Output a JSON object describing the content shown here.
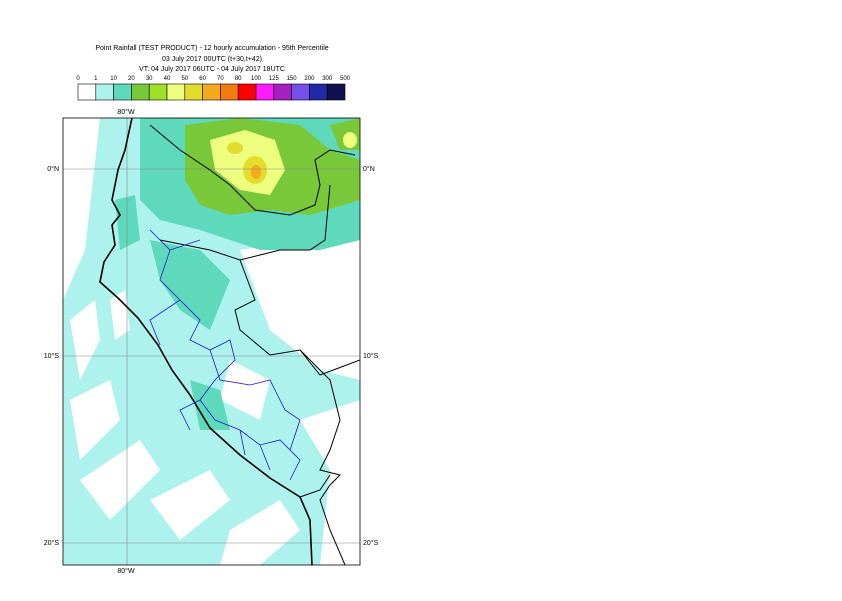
{
  "header": {
    "title": "Point Rainfall (TEST PRODUCT) - 12 hourly accumulation - 95th Percentile",
    "base_time": "03 July 2017 00UTC (t+30,t+42)",
    "valid_time": "VT: 04 July 2017 06UTC - 04 July 2017 18UTC"
  },
  "legend": {
    "bounds": [
      0,
      1,
      10,
      20,
      30,
      40,
      50,
      60,
      70,
      80,
      100,
      125,
      150,
      200,
      300,
      500
    ],
    "colors": [
      "#ffffff",
      "#aef2ee",
      "#5fd9bb",
      "#78c83a",
      "#9ee02a",
      "#eeff80",
      "#e2dc2c",
      "#f5aa1c",
      "#f27c10",
      "#ff0000",
      "#ff1cff",
      "#a51fc4",
      "#7550e8",
      "#2228a6",
      "#10104e"
    ]
  },
  "map": {
    "lon_label_top": "80°W",
    "lon_label_bottom": "80°W",
    "lat_labels": [
      "0°N",
      "10°S",
      "20°S"
    ]
  }
}
